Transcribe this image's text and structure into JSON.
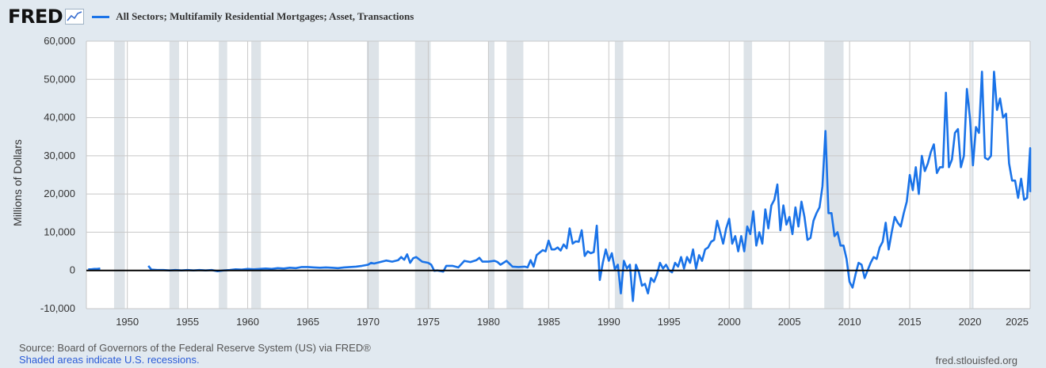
{
  "header": {
    "logo_text": "FRED",
    "series_title": "All Sectors; Multifamily Residential Mortgages; Asset, Transactions"
  },
  "footer": {
    "source": "Source: Board of Governors of the Federal Reserve System (US) via FRED®",
    "recessions_note": "Shaded areas indicate U.S. recessions.",
    "site": "fred.stlouisfed.org"
  },
  "colors": {
    "series": "#1a73e8",
    "recession": "#dde3e8",
    "grid": "#c8c8c8",
    "plot_bg": "#ffffff"
  },
  "chart_data": {
    "type": "line",
    "title": "All Sectors; Multifamily Residential Mortgages; Asset, Transactions",
    "ylabel": "Millions of Dollars",
    "xlabel": "",
    "xlim": [
      1946.6,
      2025.0
    ],
    "ylim": [
      -10000,
      60000
    ],
    "x_ticks": [
      1950,
      1955,
      1960,
      1965,
      1970,
      1975,
      1980,
      1985,
      1990,
      1995,
      2000,
      2005,
      2010,
      2015,
      2020,
      2025
    ],
    "y_ticks": [
      -10000,
      0,
      10000,
      20000,
      30000,
      40000,
      50000,
      60000
    ],
    "y_tick_labels": [
      "-10,000",
      "0",
      "10,000",
      "20,000",
      "30,000",
      "40,000",
      "50,000",
      "60,000"
    ],
    "grid": true,
    "legend_position": "top-left",
    "recessions": [
      [
        1948.9,
        1949.8
      ],
      [
        1953.5,
        1954.3
      ],
      [
        1957.6,
        1958.3
      ],
      [
        1960.3,
        1961.1
      ],
      [
        1969.9,
        1970.9
      ],
      [
        1973.9,
        1975.2
      ],
      [
        1980.0,
        1980.5
      ],
      [
        1981.5,
        1982.9
      ],
      [
        1990.5,
        1991.2
      ],
      [
        2001.2,
        2001.9
      ],
      [
        2007.9,
        2009.5
      ],
      [
        2020.1,
        2020.3
      ]
    ],
    "series": [
      {
        "segments": [
          [
            [
              1946.75,
              300
            ],
            [
              1947.0,
              300
            ],
            [
              1947.25,
              400
            ],
            [
              1947.5,
              400
            ],
            [
              1947.75,
              500
            ]
          ],
          [
            [
              1951.75,
              1200
            ],
            [
              1952.0,
              200
            ],
            [
              1952.5,
              100
            ],
            [
              1953.0,
              100
            ],
            [
              1953.5,
              0
            ],
            [
              1954.0,
              100
            ],
            [
              1954.5,
              0
            ],
            [
              1955.0,
              100
            ],
            [
              1955.5,
              0
            ],
            [
              1956.0,
              100
            ],
            [
              1956.5,
              0
            ],
            [
              1957.0,
              100
            ],
            [
              1957.5,
              -200
            ],
            [
              1958.0,
              0
            ],
            [
              1958.5,
              100
            ],
            [
              1959.0,
              300
            ],
            [
              1959.5,
              200
            ],
            [
              1960.0,
              400
            ],
            [
              1960.5,
              300
            ],
            [
              1961.0,
              400
            ],
            [
              1961.5,
              500
            ],
            [
              1962.0,
              400
            ],
            [
              1962.5,
              600
            ],
            [
              1963.0,
              500
            ],
            [
              1963.5,
              700
            ],
            [
              1964.0,
              600
            ],
            [
              1964.5,
              900
            ],
            [
              1965.0,
              900
            ],
            [
              1965.5,
              800
            ],
            [
              1966.0,
              700
            ],
            [
              1966.5,
              800
            ],
            [
              1967.0,
              700
            ],
            [
              1967.5,
              600
            ],
            [
              1968.0,
              800
            ],
            [
              1968.5,
              900
            ],
            [
              1969.0,
              1000
            ],
            [
              1969.5,
              1200
            ],
            [
              1970.0,
              1500
            ],
            [
              1970.25,
              2000
            ],
            [
              1970.5,
              1800
            ],
            [
              1971.0,
              2200
            ],
            [
              1971.5,
              2600
            ],
            [
              1972.0,
              2300
            ],
            [
              1972.5,
              2700
            ],
            [
              1972.75,
              3500
            ],
            [
              1973.0,
              2800
            ],
            [
              1973.25,
              4200
            ],
            [
              1973.5,
              2000
            ],
            [
              1973.75,
              3200
            ],
            [
              1974.0,
              3500
            ],
            [
              1974.5,
              2300
            ],
            [
              1975.0,
              2000
            ],
            [
              1975.25,
              1500
            ],
            [
              1975.5,
              -100
            ],
            [
              1975.75,
              0
            ],
            [
              1976.25,
              -300
            ],
            [
              1976.5,
              1200
            ],
            [
              1977.0,
              1200
            ],
            [
              1977.5,
              800
            ],
            [
              1978.0,
              2500
            ],
            [
              1978.5,
              2200
            ],
            [
              1979.0,
              2700
            ],
            [
              1979.25,
              3300
            ],
            [
              1979.5,
              2300
            ],
            [
              1980.0,
              2300
            ],
            [
              1980.5,
              2500
            ],
            [
              1980.75,
              2200
            ],
            [
              1981.0,
              1500
            ],
            [
              1981.5,
              2500
            ],
            [
              1982.0,
              1000
            ],
            [
              1982.5,
              900
            ],
            [
              1983.0,
              1000
            ],
            [
              1983.25,
              800
            ],
            [
              1983.5,
              2700
            ],
            [
              1983.75,
              1000
            ],
            [
              1984.0,
              4000
            ],
            [
              1984.5,
              5300
            ],
            [
              1984.75,
              5000
            ],
            [
              1985.0,
              7800
            ],
            [
              1985.25,
              5500
            ],
            [
              1985.5,
              5500
            ],
            [
              1985.75,
              6000
            ],
            [
              1986.0,
              5200
            ],
            [
              1986.25,
              6800
            ],
            [
              1986.5,
              5800
            ],
            [
              1986.75,
              11000
            ],
            [
              1987.0,
              7000
            ],
            [
              1987.25,
              7600
            ],
            [
              1987.5,
              7500
            ],
            [
              1987.75,
              10500
            ],
            [
              1988.0,
              3800
            ],
            [
              1988.25,
              5000
            ],
            [
              1988.5,
              4500
            ],
            [
              1988.75,
              4800
            ],
            [
              1989.0,
              11700
            ],
            [
              1989.25,
              -2500
            ],
            [
              1989.5,
              2000
            ],
            [
              1989.75,
              5500
            ],
            [
              1990.0,
              2500
            ],
            [
              1990.25,
              4500
            ],
            [
              1990.5,
              300
            ],
            [
              1990.75,
              1500
            ],
            [
              1991.0,
              -6000
            ],
            [
              1991.25,
              2500
            ],
            [
              1991.5,
              500
            ],
            [
              1991.75,
              1500
            ],
            [
              1992.0,
              -8000
            ],
            [
              1992.25,
              1500
            ],
            [
              1992.5,
              -500
            ],
            [
              1992.75,
              -4000
            ],
            [
              1993.0,
              -3500
            ],
            [
              1993.25,
              -6000
            ],
            [
              1993.5,
              -2000
            ],
            [
              1993.75,
              -3000
            ],
            [
              1994.0,
              -1000
            ],
            [
              1994.25,
              2000
            ],
            [
              1994.5,
              500
            ],
            [
              1994.75,
              1500
            ],
            [
              1995.0,
              0
            ],
            [
              1995.25,
              -500
            ],
            [
              1995.5,
              2000
            ],
            [
              1995.75,
              1000
            ],
            [
              1996.0,
              3500
            ],
            [
              1996.25,
              500
            ],
            [
              1996.5,
              3500
            ],
            [
              1996.75,
              2000
            ],
            [
              1997.0,
              5500
            ],
            [
              1997.25,
              500
            ],
            [
              1997.5,
              4000
            ],
            [
              1997.75,
              2500
            ],
            [
              1998.0,
              5500
            ],
            [
              1998.25,
              6000
            ],
            [
              1998.5,
              7500
            ],
            [
              1998.75,
              8000
            ],
            [
              1999.0,
              13000
            ],
            [
              1999.25,
              10000
            ],
            [
              1999.5,
              7000
            ],
            [
              1999.75,
              11000
            ],
            [
              2000.0,
              13500
            ],
            [
              2000.25,
              7000
            ],
            [
              2000.5,
              9000
            ],
            [
              2000.75,
              5000
            ],
            [
              2001.0,
              9000
            ],
            [
              2001.25,
              5000
            ],
            [
              2001.5,
              11500
            ],
            [
              2001.75,
              9500
            ],
            [
              2002.0,
              15500
            ],
            [
              2002.25,
              6500
            ],
            [
              2002.5,
              10000
            ],
            [
              2002.75,
              7000
            ],
            [
              2003.0,
              16000
            ],
            [
              2003.25,
              11000
            ],
            [
              2003.5,
              17000
            ],
            [
              2003.75,
              18500
            ],
            [
              2004.0,
              22500
            ],
            [
              2004.25,
              10500
            ],
            [
              2004.5,
              17000
            ],
            [
              2004.75,
              12000
            ],
            [
              2005.0,
              14000
            ],
            [
              2005.25,
              9500
            ],
            [
              2005.5,
              16500
            ],
            [
              2005.75,
              11500
            ],
            [
              2006.0,
              18000
            ],
            [
              2006.25,
              14000
            ],
            [
              2006.5,
              8000
            ],
            [
              2006.75,
              8500
            ],
            [
              2007.0,
              13000
            ],
            [
              2007.25,
              15000
            ],
            [
              2007.5,
              16500
            ],
            [
              2007.75,
              22000
            ],
            [
              2008.0,
              36500
            ],
            [
              2008.25,
              15000
            ],
            [
              2008.5,
              15000
            ],
            [
              2008.75,
              9000
            ],
            [
              2009.0,
              10000
            ],
            [
              2009.25,
              6500
            ],
            [
              2009.5,
              6500
            ],
            [
              2009.75,
              3000
            ],
            [
              2010.0,
              -3000
            ],
            [
              2010.25,
              -4500
            ],
            [
              2010.5,
              -1000
            ],
            [
              2010.75,
              2000
            ],
            [
              2011.0,
              1500
            ],
            [
              2011.25,
              -2000
            ],
            [
              2011.5,
              0
            ],
            [
              2011.75,
              2000
            ],
            [
              2012.0,
              3500
            ],
            [
              2012.25,
              3000
            ],
            [
              2012.5,
              6000
            ],
            [
              2012.75,
              7500
            ],
            [
              2013.0,
              12500
            ],
            [
              2013.25,
              5500
            ],
            [
              2013.5,
              10000
            ],
            [
              2013.75,
              14000
            ],
            [
              2014.0,
              12500
            ],
            [
              2014.25,
              11500
            ],
            [
              2014.5,
              15000
            ],
            [
              2014.75,
              18000
            ],
            [
              2015.0,
              25000
            ],
            [
              2015.25,
              21000
            ],
            [
              2015.5,
              27000
            ],
            [
              2015.75,
              20000
            ],
            [
              2016.0,
              30000
            ],
            [
              2016.25,
              26000
            ],
            [
              2016.5,
              28000
            ],
            [
              2016.75,
              31000
            ],
            [
              2017.0,
              33000
            ],
            [
              2017.25,
              25500
            ],
            [
              2017.5,
              27000
            ],
            [
              2017.75,
              27000
            ],
            [
              2018.0,
              46500
            ],
            [
              2018.25,
              27000
            ],
            [
              2018.5,
              29000
            ],
            [
              2018.75,
              36000
            ],
            [
              2019.0,
              37000
            ],
            [
              2019.25,
              27000
            ],
            [
              2019.5,
              30000
            ],
            [
              2019.75,
              47500
            ],
            [
              2020.0,
              40000
            ],
            [
              2020.25,
              27500
            ],
            [
              2020.5,
              37500
            ],
            [
              2020.75,
              36000
            ],
            [
              2021.0,
              52000
            ],
            [
              2021.25,
              29500
            ],
            [
              2021.5,
              29000
            ],
            [
              2021.75,
              30000
            ],
            [
              2022.0,
              52000
            ],
            [
              2022.25,
              42000
            ],
            [
              2022.5,
              45000
            ],
            [
              2022.75,
              40000
            ],
            [
              2023.0,
              41000
            ],
            [
              2023.25,
              28000
            ],
            [
              2023.5,
              23500
            ],
            [
              2023.75,
              23500
            ],
            [
              2024.0,
              19000
            ],
            [
              2024.25,
              24000
            ],
            [
              2024.5,
              18500
            ],
            [
              2024.75,
              19000
            ],
            [
              2025.0,
              32000
            ],
            [
              2025.25,
              20500
            ]
          ]
        ]
      }
    ]
  }
}
